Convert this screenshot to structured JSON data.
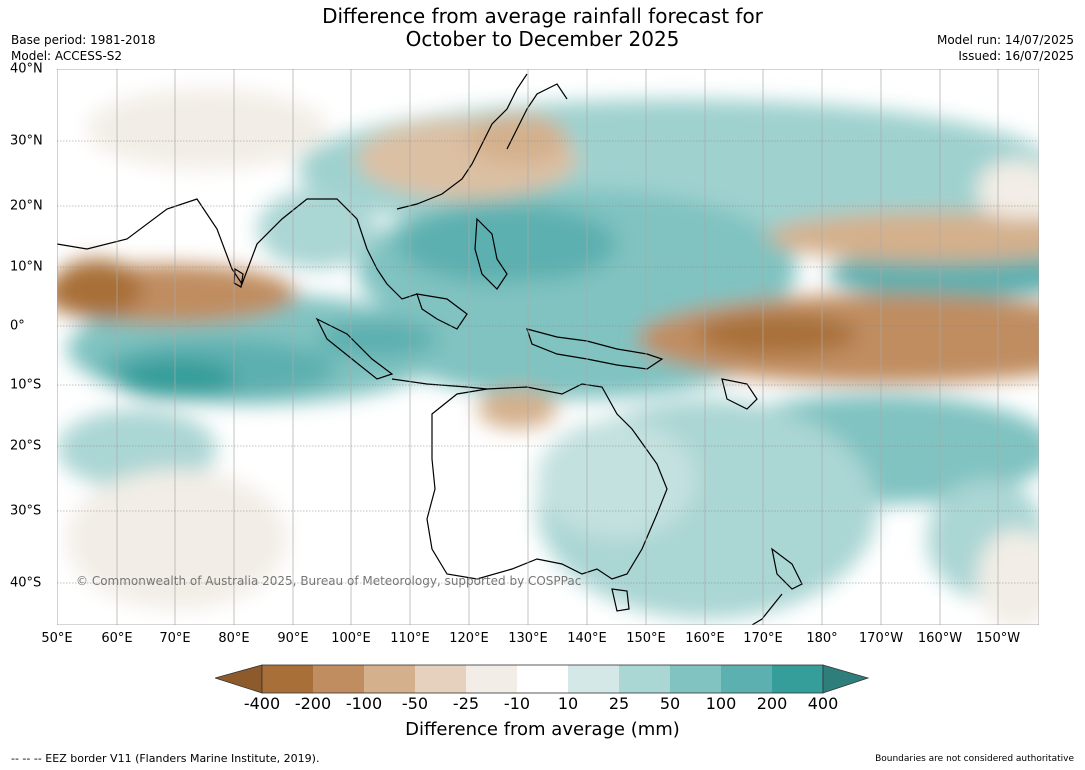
{
  "title_line1": "Difference from average rainfall forecast for",
  "title_line2": "October to December 2025",
  "meta": {
    "base_period": "Base period: 1981-2018",
    "model": "Model: ACCESS-S2",
    "model_run": "Model run: 14/07/2025",
    "issued": "Issued: 16/07/2025"
  },
  "map": {
    "longitude_ticks": [
      "50°E",
      "60°E",
      "70°E",
      "80°E",
      "90°E",
      "100°E",
      "110°E",
      "120°E",
      "130°E",
      "140°E",
      "150°E",
      "160°E",
      "170°E",
      "180°",
      "170°W",
      "160°W",
      "150°W"
    ],
    "latitude_ticks": [
      "40°N",
      "30°N",
      "20°N",
      "10°N",
      "0°",
      "10°S",
      "20°S",
      "30°S",
      "40°S"
    ],
    "copyright": "© Commonwealth of Australia 2025, Bureau of Meteorology, supported by COSPPac"
  },
  "legend": {
    "title": "Difference from average (mm)",
    "labels": [
      "-400",
      "-200",
      "-100",
      "-50",
      "-25",
      "-10",
      "10",
      "25",
      "50",
      "100",
      "200",
      "400"
    ],
    "colors": {
      "below_min": "#8c5a2b",
      "bins": [
        "#a87038",
        "#c08d60",
        "#d4b08c",
        "#e5d1bd",
        "#f2ede6",
        "#ffffff",
        "#d4e9e7",
        "#aad6d4",
        "#80c3c1",
        "#5db0b0",
        "#359d9a"
      ],
      "above_max": "#2e7f7c"
    }
  },
  "footer": {
    "eez": "--  --  -- EEZ border V11 (Flanders Marine Institute, 2019).",
    "boundaries": "Boundaries are not considered authoritative"
  }
}
